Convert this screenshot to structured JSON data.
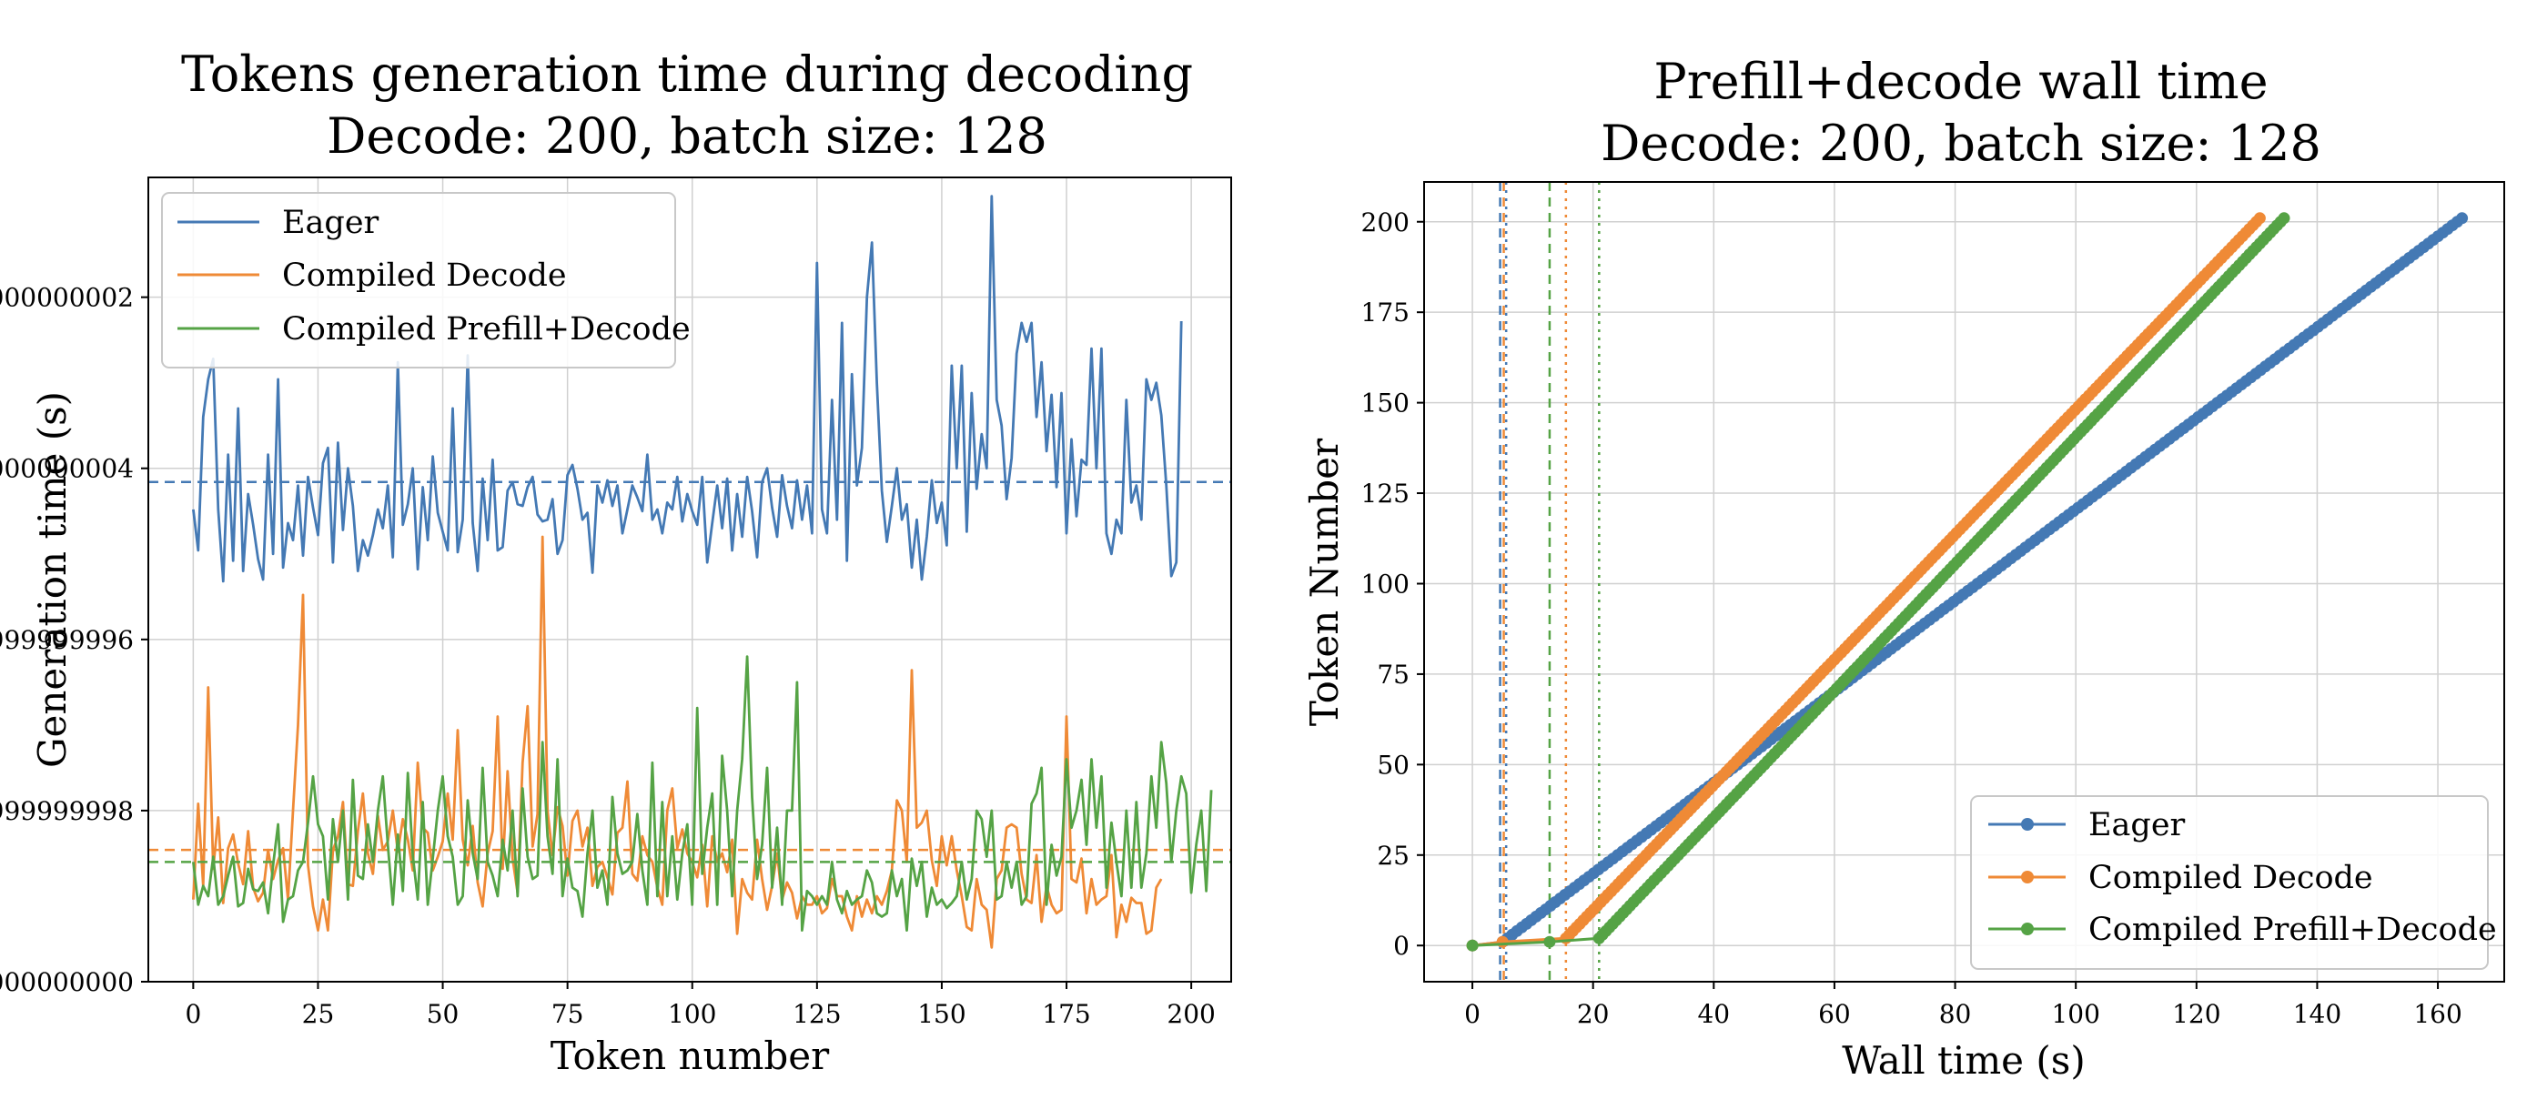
{
  "chart_data": [
    {
      "type": "line",
      "title": "Tokens generation time during decoding",
      "subtitle": "Decode: 200, batch size: 128",
      "xlabel": "Token number",
      "ylabel": "Generation time (s)",
      "xlim": [
        -9,
        208
      ],
      "ylim": [
        0.5,
        0.97
      ],
      "xticks": [
        0,
        25,
        50,
        75,
        100,
        125,
        150,
        175,
        200
      ],
      "yticks": [
        0.5,
        0.6,
        0.7,
        0.8,
        0.9
      ],
      "grid": true,
      "legend_position": "top-left",
      "series": [
        {
          "name": "Eager",
          "color": "#4479b4",
          "mean": 0.792,
          "values": [
            0.776,
            0.752,
            0.83,
            0.852,
            0.864,
            0.776,
            0.734,
            0.808,
            0.746,
            0.835,
            0.74,
            0.785,
            0.767,
            0.747,
            0.735,
            0.808,
            0.75,
            0.852,
            0.742,
            0.768,
            0.758,
            0.79,
            0.749,
            0.795,
            0.777,
            0.761,
            0.803,
            0.812,
            0.745,
            0.815,
            0.764,
            0.8,
            0.778,
            0.74,
            0.758,
            0.749,
            0.761,
            0.776,
            0.765,
            0.79,
            0.748,
            0.862,
            0.767,
            0.779,
            0.8,
            0.741,
            0.789,
            0.758,
            0.807,
            0.774,
            0.763,
            0.752,
            0.835,
            0.751,
            0.77,
            0.866,
            0.768,
            0.74,
            0.794,
            0.758,
            0.805,
            0.752,
            0.754,
            0.787,
            0.792,
            0.779,
            0.778,
            0.789,
            0.795,
            0.773,
            0.769,
            0.77,
            0.782,
            0.75,
            0.758,
            0.796,
            0.802,
            0.788,
            0.77,
            0.774,
            0.739,
            0.79,
            0.78,
            0.793,
            0.778,
            0.79,
            0.762,
            0.776,
            0.79,
            0.783,
            0.775,
            0.808,
            0.77,
            0.776,
            0.762,
            0.78,
            0.776,
            0.795,
            0.769,
            0.785,
            0.775,
            0.767,
            0.795,
            0.745,
            0.768,
            0.79,
            0.765,
            0.794,
            0.752,
            0.785,
            0.76,
            0.795,
            0.775,
            0.748,
            0.792,
            0.8,
            0.777,
            0.76,
            0.796,
            0.778,
            0.765,
            0.793,
            0.77,
            0.79,
            0.762,
            0.92,
            0.776,
            0.762,
            0.84,
            0.77,
            0.885,
            0.746,
            0.855,
            0.79,
            0.812,
            0.9,
            0.932,
            0.85,
            0.787,
            0.757,
            0.778,
            0.8,
            0.77,
            0.779,
            0.742,
            0.77,
            0.735,
            0.76,
            0.793,
            0.768,
            0.78,
            0.755,
            0.86,
            0.8,
            0.86,
            0.763,
            0.844,
            0.788,
            0.82,
            0.8,
            0.959,
            0.84,
            0.825,
            0.782,
            0.806,
            0.867,
            0.885,
            0.874,
            0.885,
            0.83,
            0.862,
            0.81,
            0.843,
            0.789,
            0.844,
            0.762,
            0.817,
            0.772,
            0.805,
            0.802,
            0.87,
            0.8,
            0.87,
            0.762,
            0.75,
            0.77,
            0.762,
            0.84,
            0.78,
            0.79,
            0.77,
            0.852,
            0.84,
            0.85,
            0.831,
            0.79,
            0.737,
            0.745,
            0.886
          ]
        },
        {
          "name": "Compiled Decode",
          "color": "#ef8a36",
          "mean": 0.577,
          "values": [
            0.548,
            0.604,
            0.556,
            0.672,
            0.566,
            0.596,
            0.546,
            0.578,
            0.586,
            0.569,
            0.557,
            0.588,
            0.555,
            0.547,
            0.552,
            0.577,
            0.56,
            0.571,
            0.578,
            0.548,
            0.6,
            0.65,
            0.726,
            0.568,
            0.544,
            0.53,
            0.548,
            0.53,
            0.577,
            0.585,
            0.605,
            0.557,
            0.556,
            0.588,
            0.61,
            0.575,
            0.563,
            0.597,
            0.577,
            0.582,
            0.6,
            0.576,
            0.595,
            0.583,
            0.565,
            0.628,
            0.59,
            0.587,
            0.565,
            0.573,
            0.582,
            0.61,
            0.583,
            0.647,
            0.583,
            0.568,
            0.591,
            0.558,
            0.544,
            0.575,
            0.588,
            0.655,
            0.566,
            0.623,
            0.572,
            0.552,
            0.628,
            0.661,
            0.579,
            0.598,
            0.76,
            0.6,
            0.574,
            0.602,
            0.591,
            0.562,
            0.594,
            0.6,
            0.579,
            0.59,
            0.556,
            0.567,
            0.57,
            0.561,
            0.551,
            0.587,
            0.59,
            0.617,
            0.563,
            0.559,
            0.585,
            0.574,
            0.57,
            0.555,
            0.545,
            0.6,
            0.613,
            0.578,
            0.589,
            0.575,
            0.57,
            0.561,
            0.58,
            0.544,
            0.585,
            0.57,
            0.575,
            0.564,
            0.583,
            0.528,
            0.56,
            0.552,
            0.548,
            0.583,
            0.56,
            0.542,
            0.556,
            0.575,
            0.548,
            0.558,
            0.552,
            0.537,
            0.55,
            0.545,
            0.545,
            0.55,
            0.54,
            0.543,
            0.56,
            0.55,
            0.55,
            0.538,
            0.53,
            0.55,
            0.538,
            0.548,
            0.54,
            0.55,
            0.545,
            0.553,
            0.565,
            0.606,
            0.6,
            0.57,
            0.682,
            0.59,
            0.593,
            0.6,
            0.571,
            0.556,
            0.585,
            0.568,
            0.585,
            0.565,
            0.55,
            0.532,
            0.53,
            0.56,
            0.545,
            0.542,
            0.52,
            0.56,
            0.565,
            0.59,
            0.592,
            0.59,
            0.563,
            0.548,
            0.546,
            0.574,
            0.535,
            0.556,
            0.545,
            0.54,
            0.542,
            0.655,
            0.56,
            0.558,
            0.572,
            0.54,
            0.56,
            0.545,
            0.548,
            0.55,
            0.574,
            0.526,
            0.545,
            0.535,
            0.549,
            0.546,
            0.546,
            0.528,
            0.53,
            0.555,
            0.56
          ]
        },
        {
          "name": "Compiled Prefill+Decode",
          "color": "#55a345",
          "mean": 0.57,
          "values": [
            0.57,
            0.545,
            0.556,
            0.55,
            0.573,
            0.545,
            0.55,
            0.562,
            0.573,
            0.544,
            0.546,
            0.566,
            0.554,
            0.553,
            0.558,
            0.54,
            0.568,
            0.592,
            0.535,
            0.548,
            0.55,
            0.565,
            0.57,
            0.593,
            0.62,
            0.592,
            0.585,
            0.548,
            0.595,
            0.57,
            0.6,
            0.548,
            0.618,
            0.562,
            0.56,
            0.592,
            0.57,
            0.6,
            0.62,
            0.58,
            0.545,
            0.586,
            0.553,
            0.622,
            0.574,
            0.548,
            0.605,
            0.545,
            0.572,
            0.6,
            0.62,
            0.585,
            0.573,
            0.545,
            0.55,
            0.606,
            0.575,
            0.56,
            0.625,
            0.57,
            0.562,
            0.55,
            0.583,
            0.565,
            0.6,
            0.55,
            0.613,
            0.573,
            0.56,
            0.562,
            0.64,
            0.585,
            0.563,
            0.63,
            0.55,
            0.572,
            0.555,
            0.553,
            0.538,
            0.575,
            0.6,
            0.555,
            0.565,
            0.545,
            0.608,
            0.575,
            0.563,
            0.565,
            0.57,
            0.598,
            0.565,
            0.545,
            0.628,
            0.55,
            0.605,
            0.55,
            0.585,
            0.548,
            0.575,
            0.592,
            0.545,
            0.66,
            0.563,
            0.59,
            0.61,
            0.545,
            0.632,
            0.6,
            0.55,
            0.6,
            0.63,
            0.69,
            0.608,
            0.56,
            0.58,
            0.625,
            0.555,
            0.59,
            0.545,
            0.6,
            0.6,
            0.675,
            0.53,
            0.553,
            0.55,
            0.545,
            0.55,
            0.545,
            0.57,
            0.548,
            0.54,
            0.553,
            0.545,
            0.548,
            0.55,
            0.565,
            0.558,
            0.54,
            0.538,
            0.54,
            0.565,
            0.55,
            0.56,
            0.53,
            0.572,
            0.556,
            0.57,
            0.538,
            0.555,
            0.545,
            0.548,
            0.543,
            0.546,
            0.55,
            0.57,
            0.548,
            0.56,
            0.6,
            0.595,
            0.573,
            0.6,
            0.548,
            0.55,
            0.57,
            0.555,
            0.57,
            0.545,
            0.55,
            0.604,
            0.61,
            0.625,
            0.545,
            0.58,
            0.562,
            0.573,
            0.63,
            0.59,
            0.6,
            0.618,
            0.58,
            0.63,
            0.59,
            0.62,
            0.555,
            0.593,
            0.57,
            0.55,
            0.6,
            0.555,
            0.605,
            0.555,
            0.575,
            0.62,
            0.59,
            0.64,
            0.616,
            0.57,
            0.6,
            0.62,
            0.61,
            0.552,
            0.58,
            0.6,
            0.553,
            0.612
          ]
        }
      ]
    },
    {
      "type": "line",
      "title": "Prefill+decode wall time",
      "subtitle": "Decode: 200, batch size: 128",
      "xlabel": "Wall time (s)",
      "ylabel": "Token Number",
      "xlim": [
        -8,
        171
      ],
      "ylim": [
        -10,
        211
      ],
      "xticks": [
        0,
        20,
        40,
        60,
        80,
        100,
        120,
        140,
        160
      ],
      "yticks": [
        0,
        25,
        50,
        75,
        100,
        125,
        150,
        175,
        200
      ],
      "grid": true,
      "legend_position": "bottom-right",
      "series": [
        {
          "name": "Eager",
          "color": "#4479b4",
          "points": [
            [
              0,
              0
            ],
            [
              5,
              1
            ],
            [
              164,
              201
            ]
          ],
          "vlines": [
            4.6,
            5.6
          ]
        },
        {
          "name": "Compiled Decode",
          "color": "#ef8a36",
          "points": [
            [
              0,
              0
            ],
            [
              5,
              1
            ],
            [
              15.5,
              2
            ],
            [
              130.5,
              201
            ]
          ],
          "vlines": [
            5.2,
            15.5
          ]
        },
        {
          "name": "Compiled Prefill+Decode",
          "color": "#55a345",
          "points": [
            [
              0,
              0
            ],
            [
              12.8,
              1
            ],
            [
              21,
              2
            ],
            [
              134.5,
              201
            ]
          ],
          "vlines": [
            12.8,
            21
          ]
        }
      ]
    }
  ]
}
